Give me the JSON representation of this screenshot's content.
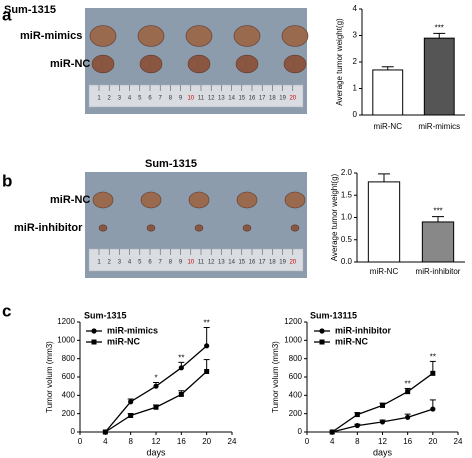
{
  "panels": [
    {
      "label": "a",
      "title": "Sum-1315",
      "rows": [
        "miR-mimics",
        "miR-NC"
      ]
    },
    {
      "label": "b",
      "title": "Sum-1315",
      "rows": [
        "miR-NC",
        "miR-inhibitor"
      ]
    },
    {
      "label": "c"
    }
  ],
  "ruler_labels": [
    "1",
    "2",
    "3",
    "4",
    "5",
    "6",
    "7",
    "8",
    "9",
    "10",
    "11",
    "12",
    "13",
    "14",
    "15",
    "16",
    "17",
    "18",
    "19",
    "20"
  ],
  "chart_data": [
    {
      "type": "bar",
      "y_label": "Average tumor weight(g)",
      "categories": [
        "miR-NC",
        "miR-mimics"
      ],
      "values": [
        1.7,
        2.9
      ],
      "errors": [
        0.12,
        0.18
      ],
      "colors": [
        "#ffffff",
        "#555555"
      ],
      "value_annotations": [
        null,
        "***"
      ],
      "ylim": [
        0,
        4
      ],
      "yticks": [
        0,
        1,
        2,
        3,
        4
      ]
    },
    {
      "type": "bar",
      "y_label": "Average tumor weight(g)",
      "categories": [
        "miR-NC",
        "miR-inhibitor"
      ],
      "values": [
        1.8,
        0.9
      ],
      "errors": [
        0.18,
        0.12
      ],
      "colors": [
        "#ffffff",
        "#888888"
      ],
      "value_annotations": [
        null,
        "***"
      ],
      "ylim": [
        0,
        2
      ],
      "yticks": [
        {
          "value": 0,
          "label": "0.0"
        },
        0.5,
        {
          "value": 1,
          "label": "1.0"
        },
        1.5,
        {
          "value": 2,
          "label": "2.0"
        }
      ]
    },
    {
      "type": "line",
      "title": "Sum-1315",
      "y_label": "Tumor volum (mm3)",
      "x_label": "days",
      "x": [
        4,
        8,
        12,
        16,
        20
      ],
      "series": [
        {
          "name": "miR-mimics",
          "color": "#000000",
          "marker": "circle",
          "values": [
            0,
            330,
            500,
            700,
            940
          ],
          "errors": [
            0,
            30,
            40,
            60,
            200
          ]
        },
        {
          "name": "miR-NC",
          "color": "#000000",
          "marker": "square",
          "values": [
            0,
            180,
            270,
            410,
            660
          ],
          "errors": [
            0,
            20,
            25,
            40,
            130
          ]
        }
      ],
      "annotations": [
        {
          "x": 12,
          "text": "*"
        },
        {
          "x": 16,
          "text": "**"
        },
        {
          "x": 20,
          "text": "**"
        }
      ],
      "legend": "upper left",
      "xlim": [
        0,
        24
      ],
      "xticks": [
        0,
        4,
        8,
        12,
        16,
        20,
        24
      ],
      "ylim": [
        0,
        1200
      ],
      "yticks": [
        0,
        200,
        400,
        600,
        800,
        1000,
        1200
      ]
    },
    {
      "type": "line",
      "title": "Sum-13115",
      "y_label": "Tumor volum (mm3)",
      "x_label": "days",
      "x": [
        4,
        8,
        12,
        16,
        20
      ],
      "series": [
        {
          "name": "miR-inhibitor",
          "color": "#000000",
          "marker": "circle",
          "values": [
            0,
            70,
            110,
            160,
            250
          ],
          "errors": [
            0,
            15,
            20,
            35,
            100
          ]
        },
        {
          "name": "miR-NC",
          "color": "#000000",
          "marker": "square",
          "values": [
            0,
            190,
            290,
            440,
            640
          ],
          "errors": [
            0,
            20,
            25,
            35,
            130
          ]
        }
      ],
      "annotations": [
        {
          "x": 16,
          "text": "**"
        },
        {
          "x": 20,
          "text": "**"
        }
      ],
      "legend": "upper left",
      "xlim": [
        0,
        24
      ],
      "xticks": [
        0,
        4,
        8,
        12,
        16,
        20,
        24
      ],
      "ylim": [
        0,
        1200
      ],
      "yticks": [
        0,
        200,
        400,
        600,
        800,
        1000,
        1200
      ]
    }
  ]
}
